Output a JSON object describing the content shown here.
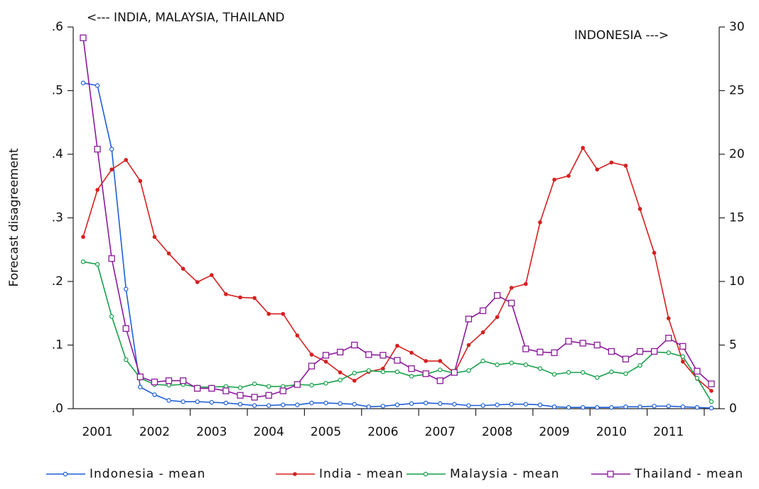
{
  "chart_data": {
    "type": "line",
    "y_label": "Forecast disagreement",
    "annotations": [
      "<--- INDIA, MALAYSIA, THAILAND",
      "INDONESIA --->"
    ],
    "categories": [
      null,
      "2001",
      null,
      null,
      null,
      "2002",
      null,
      null,
      null,
      "2003",
      null,
      null,
      null,
      "2004",
      null,
      null,
      null,
      "2005",
      null,
      null,
      null,
      "2006",
      null,
      null,
      null,
      "2007",
      null,
      null,
      null,
      "2008",
      null,
      null,
      null,
      "2009",
      null,
      null,
      null,
      "2010",
      null,
      null,
      null,
      "2011",
      null,
      null,
      null
    ],
    "ylim": [
      0,
      0.6
    ],
    "yticks": [
      {
        "value": 0,
        "label": ".0"
      },
      {
        "value": 0.1,
        "label": ".1"
      },
      {
        "value": 0.2,
        "label": ".2"
      },
      {
        "value": 0.3,
        "label": ".3"
      },
      {
        "value": 0.4,
        "label": ".4"
      },
      {
        "value": 0.5,
        "label": ".5"
      },
      {
        "value": 0.6,
        "label": ".6"
      }
    ],
    "y2lim": [
      0,
      30
    ],
    "y2ticks": [
      0,
      5,
      10,
      15,
      20,
      25,
      30
    ],
    "series": [
      {
        "name": "Indonesia - mean",
        "color": "#1f5fd6",
        "axis": "y2",
        "marker": "hollow-circle",
        "values": [
          25.6,
          25.4,
          20.4,
          9.4,
          1.7,
          1.1,
          0.65,
          0.55,
          0.55,
          0.5,
          0.45,
          0.35,
          0.25,
          0.25,
          0.3,
          0.3,
          0.45,
          0.45,
          0.4,
          0.35,
          0.15,
          0.2,
          0.3,
          0.4,
          0.45,
          0.4,
          0.35,
          0.25,
          0.25,
          0.3,
          0.35,
          0.35,
          0.3,
          0.15,
          0.1,
          0.1,
          0.1,
          0.1,
          0.15,
          0.15,
          0.2,
          0.2,
          0.15,
          0.1,
          0.05
        ]
      },
      {
        "name": "India - mean",
        "color": "#d62020",
        "marker": "dot",
        "values": [
          0.27,
          0.344,
          0.376,
          0.391,
          0.358,
          0.27,
          0.244,
          0.22,
          0.199,
          0.21,
          0.18,
          0.175,
          0.174,
          0.149,
          0.149,
          0.115,
          0.085,
          0.074,
          0.057,
          0.044,
          0.058,
          0.063,
          0.099,
          0.088,
          0.075,
          0.075,
          0.056,
          0.1,
          0.12,
          0.144,
          0.19,
          0.196,
          0.293,
          0.36,
          0.366,
          0.41,
          0.376,
          0.387,
          0.382,
          0.314,
          0.245,
          0.142,
          0.074,
          0.047,
          0.028
        ]
      },
      {
        "name": "Malaysia - mean",
        "color": "#16a04a",
        "marker": "hollow-circle",
        "values": [
          0.231,
          0.227,
          0.145,
          0.077,
          0.048,
          0.038,
          0.037,
          0.038,
          0.034,
          0.034,
          0.035,
          0.033,
          0.039,
          0.035,
          0.035,
          0.038,
          0.037,
          0.04,
          0.045,
          0.056,
          0.06,
          0.058,
          0.058,
          0.051,
          0.054,
          0.061,
          0.056,
          0.06,
          0.075,
          0.069,
          0.072,
          0.069,
          0.063,
          0.054,
          0.057,
          0.057,
          0.049,
          0.058,
          0.055,
          0.068,
          0.089,
          0.088,
          0.082,
          0.048,
          0.011
        ]
      },
      {
        "name": "Thailand - mean",
        "color": "#8b1a9a",
        "marker": "hollow-square",
        "values": [
          0.583,
          0.408,
          0.236,
          0.126,
          0.05,
          0.042,
          0.044,
          0.044,
          0.032,
          0.032,
          0.028,
          0.021,
          0.018,
          0.021,
          0.028,
          0.038,
          0.067,
          0.084,
          0.089,
          0.1,
          0.085,
          0.084,
          0.076,
          0.063,
          0.055,
          0.044,
          0.057,
          0.141,
          0.154,
          0.178,
          0.166,
          0.094,
          0.089,
          0.088,
          0.106,
          0.103,
          0.1,
          0.09,
          0.078,
          0.09,
          0.09,
          0.111,
          0.098,
          0.059,
          0.039
        ]
      }
    ]
  }
}
